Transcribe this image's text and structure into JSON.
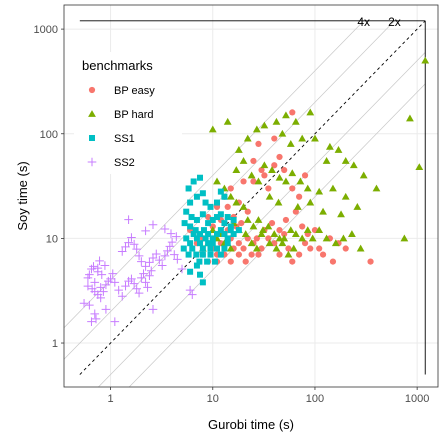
{
  "chart_data": {
    "type": "scatter",
    "xlabel": "Gurobi time (s)",
    "ylabel": "Soy time (s)",
    "xscale": "log",
    "yscale": "log",
    "xlim": [
      0.35,
      1600
    ],
    "ylim": [
      0.38,
      1700
    ],
    "xticks": [
      {
        "v": 1,
        "label": "1"
      },
      {
        "v": 10,
        "label": "10"
      },
      {
        "v": 100,
        "label": "100"
      },
      {
        "v": 1000,
        "label": "1000"
      }
    ],
    "yticks": [
      {
        "v": 1,
        "label": "1"
      },
      {
        "v": 10,
        "label": "10"
      },
      {
        "v": 100,
        "label": "100"
      },
      {
        "v": 1000,
        "label": "1000"
      }
    ],
    "grid": true,
    "legend": {
      "title": "benchmarks",
      "position": "top-left inside"
    },
    "reference_lines": {
      "identity_dashed": {
        "from": 0.5,
        "to": 1200
      },
      "ratio_lines": [
        4,
        2,
        0.5,
        0.25
      ],
      "ratio_labels": [
        "4x",
        "2x"
      ],
      "timeout_x": 1200,
      "timeout_y": 1200
    },
    "series": [
      {
        "name": "BP easy",
        "shape": "circle",
        "color": "#F8766D",
        "points": [
          [
            10,
            8
          ],
          [
            12,
            9
          ],
          [
            11,
            7
          ],
          [
            13,
            11
          ],
          [
            15,
            10
          ],
          [
            16,
            8
          ],
          [
            18,
            9
          ],
          [
            14,
            12
          ],
          [
            20,
            8
          ],
          [
            22,
            10
          ],
          [
            25,
            9
          ],
          [
            28,
            7
          ],
          [
            30,
            8
          ],
          [
            35,
            10
          ],
          [
            40,
            9
          ],
          [
            45,
            7
          ],
          [
            50,
            11
          ],
          [
            55,
            8
          ],
          [
            60,
            6
          ],
          [
            70,
            7
          ],
          [
            80,
            9
          ],
          [
            90,
            8
          ],
          [
            120,
            7
          ],
          [
            150,
            6
          ],
          [
            200,
            8
          ],
          [
            350,
            6
          ],
          [
            9,
            16
          ],
          [
            11,
            20
          ],
          [
            13,
            25
          ],
          [
            15,
            30
          ],
          [
            18,
            22
          ],
          [
            20,
            35
          ],
          [
            25,
            55
          ],
          [
            28,
            80
          ],
          [
            32,
            40
          ],
          [
            35,
            30
          ],
          [
            40,
            50
          ],
          [
            45,
            60
          ],
          [
            50,
            45
          ],
          [
            60,
            30
          ],
          [
            70,
            25
          ],
          [
            80,
            40
          ],
          [
            60,
            160
          ],
          [
            40,
            90
          ],
          [
            30,
            45
          ],
          [
            25,
            35
          ],
          [
            22,
            18
          ],
          [
            19,
            14
          ],
          [
            17,
            13
          ],
          [
            16,
            16
          ],
          [
            14,
            20
          ],
          [
            12,
            15
          ],
          [
            10,
            13
          ],
          [
            9,
            11
          ],
          [
            8,
            10
          ],
          [
            7,
            9
          ],
          [
            6,
            12
          ],
          [
            8,
            7
          ],
          [
            9,
            6
          ],
          [
            11,
            6
          ],
          [
            13,
            7
          ],
          [
            15,
            6
          ],
          [
            18,
            7
          ],
          [
            21,
            6
          ],
          [
            24,
            7
          ],
          [
            27,
            10
          ],
          [
            32,
            12
          ],
          [
            38,
            14
          ],
          [
            45,
            12
          ],
          [
            52,
            15
          ],
          [
            65,
            18
          ],
          [
            100,
            12
          ],
          [
            140,
            10
          ],
          [
            170,
            9
          ],
          [
            110,
            8
          ],
          [
            85,
            11
          ],
          [
            75,
            13
          ]
        ]
      },
      {
        "name": "BP hard",
        "shape": "triangle",
        "color": "#7CAE00",
        "points": [
          [
            1200,
            500
          ],
          [
            850,
            140
          ],
          [
            1050,
            48
          ],
          [
            750,
            10
          ],
          [
            10,
            110
          ],
          [
            14,
            130
          ],
          [
            18,
            70
          ],
          [
            22,
            90
          ],
          [
            27,
            110
          ],
          [
            32,
            120
          ],
          [
            42,
            130
          ],
          [
            52,
            150
          ],
          [
            65,
            130
          ],
          [
            90,
            160
          ],
          [
            48,
            100
          ],
          [
            58,
            80
          ],
          [
            75,
            90
          ],
          [
            100,
            90
          ],
          [
            140,
            75
          ],
          [
            170,
            70
          ],
          [
            130,
            55
          ],
          [
            200,
            55
          ],
          [
            240,
            50
          ],
          [
            300,
            40
          ],
          [
            400,
            30
          ],
          [
            17,
            45
          ],
          [
            20,
            55
          ],
          [
            24,
            40
          ],
          [
            28,
            35
          ],
          [
            32,
            50
          ],
          [
            38,
            45
          ],
          [
            45,
            38
          ],
          [
            52,
            35
          ],
          [
            60,
            42
          ],
          [
            72,
            35
          ],
          [
            85,
            30
          ],
          [
            110,
            28
          ],
          [
            150,
            30
          ],
          [
            200,
            25
          ],
          [
            260,
            20
          ],
          [
            11,
            35
          ],
          [
            13,
            30
          ],
          [
            15,
            25
          ],
          [
            17,
            22
          ],
          [
            20,
            20
          ],
          [
            22,
            15
          ],
          [
            25,
            13
          ],
          [
            28,
            15
          ],
          [
            31,
            12
          ],
          [
            35,
            13
          ],
          [
            40,
            11
          ],
          [
            45,
            10
          ],
          [
            50,
            10
          ],
          [
            58,
            12
          ],
          [
            65,
            11
          ],
          [
            75,
            10
          ],
          [
            85,
            12
          ],
          [
            95,
            10
          ],
          [
            110,
            12
          ],
          [
            130,
            10
          ],
          [
            160,
            9
          ],
          [
            190,
            10
          ],
          [
            230,
            11
          ],
          [
            280,
            8
          ],
          [
            16,
            14
          ],
          [
            18,
            12
          ],
          [
            21,
            11
          ],
          [
            24,
            9
          ],
          [
            27,
            8
          ],
          [
            30,
            11
          ],
          [
            36,
            9
          ],
          [
            42,
            8
          ],
          [
            48,
            9
          ],
          [
            55,
            7
          ],
          [
            62,
            8
          ],
          [
            10,
            12
          ],
          [
            12,
            11
          ],
          [
            9,
            9
          ],
          [
            11,
            10
          ],
          [
            8,
            8
          ],
          [
            13,
            9
          ],
          [
            15,
            8
          ],
          [
            180,
            17
          ],
          [
            120,
            18
          ],
          [
            90,
            22
          ],
          [
            68,
            20
          ],
          [
            44,
            22
          ],
          [
            36,
            25
          ]
        ]
      },
      {
        "name": "SS1",
        "shape": "square",
        "color": "#00BFC4",
        "points": [
          [
            6.5,
            35
          ],
          [
            5.8,
            30
          ],
          [
            7.5,
            38
          ],
          [
            6,
            22
          ],
          [
            7,
            25
          ],
          [
            8,
            27
          ],
          [
            8.5,
            22
          ],
          [
            9.5,
            20
          ],
          [
            11,
            22
          ],
          [
            12,
            28
          ],
          [
            13,
            25
          ],
          [
            5.5,
            18
          ],
          [
            6.2,
            16
          ],
          [
            7,
            15
          ],
          [
            8,
            17
          ],
          [
            9,
            14
          ],
          [
            10,
            15
          ],
          [
            11,
            16
          ],
          [
            12,
            17
          ],
          [
            13,
            14
          ],
          [
            14,
            16
          ],
          [
            15,
            13
          ],
          [
            16,
            15
          ],
          [
            5.3,
            14
          ],
          [
            6,
            13
          ],
          [
            6.8,
            12
          ],
          [
            7.5,
            11
          ],
          [
            8.2,
            12
          ],
          [
            9,
            11
          ],
          [
            10,
            10
          ],
          [
            11,
            11
          ],
          [
            12,
            12
          ],
          [
            13,
            11
          ],
          [
            14,
            10
          ],
          [
            15,
            12
          ],
          [
            16,
            11
          ],
          [
            18,
            12
          ],
          [
            5.5,
            10
          ],
          [
            6,
            9
          ],
          [
            6.5,
            11
          ],
          [
            7,
            10
          ],
          [
            7.5,
            9
          ],
          [
            8,
            8
          ],
          [
            8.5,
            10
          ],
          [
            9,
            9
          ],
          [
            9.5,
            8
          ],
          [
            10,
            9
          ],
          [
            11,
            8
          ],
          [
            12,
            7
          ],
          [
            13,
            8
          ],
          [
            14,
            9
          ],
          [
            5.2,
            8
          ],
          [
            5.8,
            7
          ],
          [
            6.3,
            8
          ],
          [
            6.9,
            7
          ],
          [
            7.4,
            6
          ],
          [
            8,
            7
          ],
          [
            8.8,
            6
          ],
          [
            9.5,
            7
          ],
          [
            10.5,
            6
          ],
          [
            7,
            5.5
          ],
          [
            6,
            4.8
          ],
          [
            7.5,
            4.5
          ],
          [
            8,
            3.8
          ]
        ]
      },
      {
        "name": "SS2",
        "shape": "plus",
        "color": "#C77CFF",
        "points": [
          [
            0.55,
            2.4
          ],
          [
            0.62,
            2.3
          ],
          [
            0.7,
            1.9
          ],
          [
            0.72,
            1.7
          ],
          [
            0.65,
            1.6
          ],
          [
            0.6,
            4.2
          ],
          [
            0.62,
            4.5
          ],
          [
            0.65,
            5.1
          ],
          [
            0.68,
            5.4
          ],
          [
            0.75,
            5.2
          ],
          [
            0.78,
            6.1
          ],
          [
            0.7,
            3.8
          ],
          [
            0.8,
            3.4
          ],
          [
            0.85,
            3.1
          ],
          [
            0.9,
            3.6
          ],
          [
            0.95,
            3.9
          ],
          [
            1,
            4.1
          ],
          [
            1.05,
            4.6
          ],
          [
            0.75,
            4.8
          ],
          [
            0.82,
            4.5
          ],
          [
            0.88,
            5.5
          ],
          [
            0.6,
            3.5
          ],
          [
            0.66,
            3.3
          ],
          [
            0.7,
            3.1
          ],
          [
            0.75,
            2.9
          ],
          [
            0.8,
            2.7
          ],
          [
            1.1,
            3.8
          ],
          [
            1.2,
            3.2
          ],
          [
            1.3,
            2.8
          ],
          [
            1.4,
            3.5
          ],
          [
            1.5,
            3.9
          ],
          [
            1.6,
            4.1
          ],
          [
            1.7,
            3.7
          ],
          [
            1.8,
            3.3
          ],
          [
            1.9,
            3
          ],
          [
            2,
            4.2
          ],
          [
            2.1,
            4.6
          ],
          [
            2.2,
            3.8
          ],
          [
            2.3,
            3.4
          ],
          [
            2.4,
            4.4
          ],
          [
            2.5,
            4.9
          ],
          [
            1.3,
            7.5
          ],
          [
            1.4,
            8.3
          ],
          [
            1.5,
            9.1
          ],
          [
            1.6,
            10.2
          ],
          [
            1.7,
            8.8
          ],
          [
            1.8,
            7.9
          ],
          [
            1.9,
            6.8
          ],
          [
            2,
            6
          ],
          [
            2.2,
            5.4
          ],
          [
            2.4,
            5.9
          ],
          [
            2.6,
            6.5
          ],
          [
            2.8,
            7.1
          ],
          [
            3,
            6.2
          ],
          [
            3.2,
            5.5
          ],
          [
            3.4,
            6.8
          ],
          [
            3.6,
            7.6
          ],
          [
            3.8,
            8.4
          ],
          [
            4,
            9.2
          ],
          [
            4.2,
            7
          ],
          [
            4.5,
            6.3
          ],
          [
            5,
            5.1
          ],
          [
            2.6,
            13.5
          ],
          [
            1.5,
            15.1
          ],
          [
            2.2,
            11.8
          ],
          [
            3.4,
            12.3
          ],
          [
            3.9,
            11.1
          ],
          [
            4.4,
            10.4
          ],
          [
            6,
            3.2
          ],
          [
            6.3,
            2.9
          ],
          [
            2.6,
            2.1
          ],
          [
            1.1,
            1.6
          ],
          [
            0.9,
            2.1
          ]
        ]
      }
    ]
  }
}
